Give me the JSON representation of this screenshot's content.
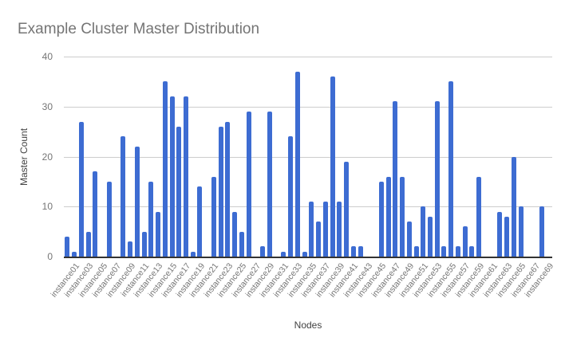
{
  "chart_data": {
    "type": "bar",
    "title": "Example Cluster Master Distribution",
    "xlabel": "Nodes",
    "ylabel": "Master Count",
    "ylim": [
      0,
      40
    ],
    "yticks": [
      0,
      10,
      20,
      30,
      40
    ],
    "grid": true,
    "legend_position": "none",
    "bar_color": "#3D6CD2",
    "num_bars": 70,
    "x_tick_label_every": 2,
    "x_tick_labels": [
      "instance01",
      "instance03",
      "instance05",
      "instance07",
      "instance09",
      "instance11",
      "instance13",
      "instance15",
      "instance17",
      "instance19",
      "instance21",
      "instance23",
      "instance25",
      "instance27",
      "instance29",
      "instance31",
      "instance33",
      "instance35",
      "instance37",
      "instance39",
      "instance41",
      "instance43",
      "instance45",
      "instance47",
      "instance49",
      "instance51",
      "instance53",
      "instance55",
      "instance57",
      "instance59",
      "instance61",
      "instance63",
      "instance65",
      "instance67",
      "instance69"
    ],
    "values": [
      4,
      1,
      27,
      5,
      17,
      0,
      15,
      0,
      24,
      3,
      22,
      5,
      15,
      9,
      35,
      32,
      26,
      32,
      1,
      14,
      0,
      16,
      26,
      27,
      9,
      5,
      29,
      0,
      2,
      29,
      0,
      1,
      24,
      37,
      1,
      11,
      7,
      11,
      36,
      11,
      19,
      2,
      2,
      0,
      0,
      15,
      16,
      31,
      16,
      7,
      2,
      10,
      8,
      31,
      2,
      35,
      2,
      6,
      2,
      16,
      0,
      0,
      9,
      8,
      20,
      10,
      0,
      0,
      10,
      0
    ]
  },
  "colors": {
    "background": "#ffffff",
    "bar": "#3D6CD2",
    "gridline": "#cccccc",
    "axis_line": "#333333",
    "tick_label": "#757575",
    "axis_title": "#424242",
    "chart_title": "#757575"
  }
}
